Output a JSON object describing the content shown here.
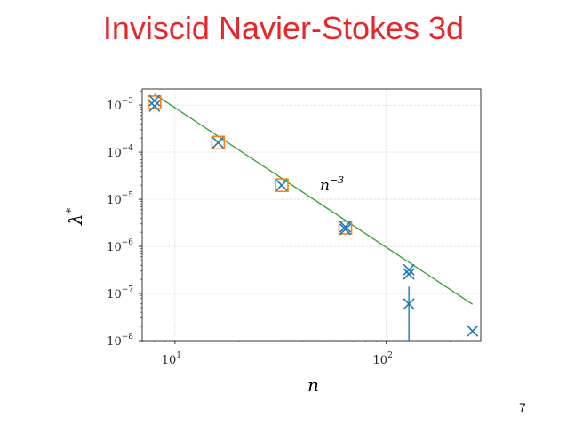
{
  "slide": {
    "title": "Inviscid Navier-Stokes 3d",
    "page_number": "7"
  },
  "chart_data": {
    "type": "scatter",
    "title": "",
    "xlabel": "n",
    "ylabel": "λ*",
    "xscale": "log",
    "yscale": "log",
    "xlim": [
      7.0,
      280
    ],
    "ylim": [
      1e-08,
      0.0022
    ],
    "grid": true,
    "x_ticks": [
      {
        "base": "10",
        "exp": "1",
        "value": 10
      },
      {
        "base": "10",
        "exp": "2",
        "value": 100
      }
    ],
    "y_ticks": [
      {
        "base": "10",
        "exp": "−3",
        "value": 0.001
      },
      {
        "base": "10",
        "exp": "−4",
        "value": 0.0001
      },
      {
        "base": "10",
        "exp": "−5",
        "value": 1e-05
      },
      {
        "base": "10",
        "exp": "−6",
        "value": 1e-06
      },
      {
        "base": "10",
        "exp": "−7",
        "value": 1e-07
      },
      {
        "base": "10",
        "exp": "−8",
        "value": 1e-08
      }
    ],
    "series": [
      {
        "marker": "x",
        "color": "#1f77b4",
        "points": [
          {
            "x": 8,
            "y": 0.00125
          },
          {
            "x": 8,
            "y": 0.00095
          },
          {
            "x": 16,
            "y": 0.00016
          },
          {
            "x": 32,
            "y": 2e-05
          },
          {
            "x": 64,
            "y": 2.6e-06
          },
          {
            "x": 64,
            "y": 2.3e-06
          },
          {
            "x": 128,
            "y": 3.2e-07
          },
          {
            "x": 128,
            "y": 2.6e-07
          },
          {
            "x": 128,
            "y": 6e-08
          },
          {
            "x": 256,
            "y": 1.6e-08
          }
        ],
        "error_bars": [
          {
            "x": 128,
            "y": 6e-08,
            "low": 1e-08,
            "high": 1.4e-07
          }
        ]
      },
      {
        "marker": "square",
        "color": "#ff7f0e",
        "points": [
          {
            "x": 8,
            "y": 0.00115
          },
          {
            "x": 16,
            "y": 0.00016
          },
          {
            "x": 32,
            "y": 2e-05
          },
          {
            "x": 64,
            "y": 2.5e-06
          }
        ]
      }
    ],
    "reference_line": {
      "label": "n^{-3}",
      "label_base": "n",
      "label_exp": "−3",
      "color": "#2ca02c",
      "x": [
        8,
        256
      ],
      "y": [
        0.0017,
        5.9e-08
      ]
    }
  }
}
